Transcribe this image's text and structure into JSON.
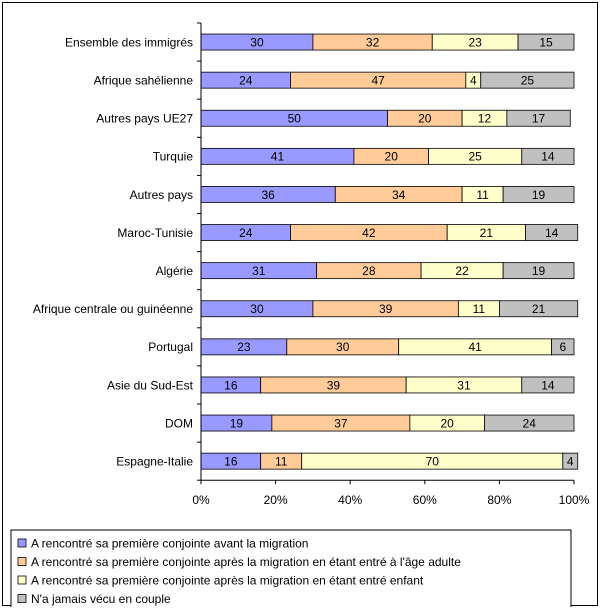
{
  "chart_data": {
    "type": "bar",
    "orientation": "horizontal",
    "stacked": "percent",
    "categories": [
      "Ensemble des immigrés",
      "Afrique sahélienne",
      "Autres pays UE27",
      "Turquie",
      "Autres pays",
      "Maroc-Tunisie",
      "Algérie",
      "Afrique centrale ou guinéenne",
      "Portugal",
      "Asie du Sud-Est",
      "DOM",
      "Espagne-Italie"
    ],
    "series": [
      {
        "name": "A rencontré sa première conjointe avant la migration",
        "color": "#9999FF",
        "values": [
          30,
          24,
          50,
          41,
          36,
          24,
          31,
          30,
          23,
          16,
          19,
          16
        ]
      },
      {
        "name": "A rencontré sa première conjointe après la migration en étant entré à l'âge adulte",
        "color": "#FFCC99",
        "values": [
          32,
          47,
          20,
          20,
          34,
          42,
          28,
          39,
          30,
          39,
          37,
          11
        ]
      },
      {
        "name": "A rencontré sa première conjointe après la migration en étant entré enfant",
        "color": "#FFFFCC",
        "values": [
          23,
          4,
          12,
          25,
          11,
          21,
          22,
          11,
          41,
          31,
          20,
          70
        ]
      },
      {
        "name": "N'a jamais vécu en couple",
        "color": "#C0C0C0",
        "values": [
          15,
          25,
          17,
          14,
          19,
          14,
          19,
          21,
          6,
          14,
          24,
          4
        ]
      }
    ],
    "x_ticks": [
      "0%",
      "20%",
      "40%",
      "60%",
      "80%",
      "100%"
    ],
    "xlim": [
      0,
      100
    ],
    "grid": false,
    "legend_position": "bottom"
  }
}
